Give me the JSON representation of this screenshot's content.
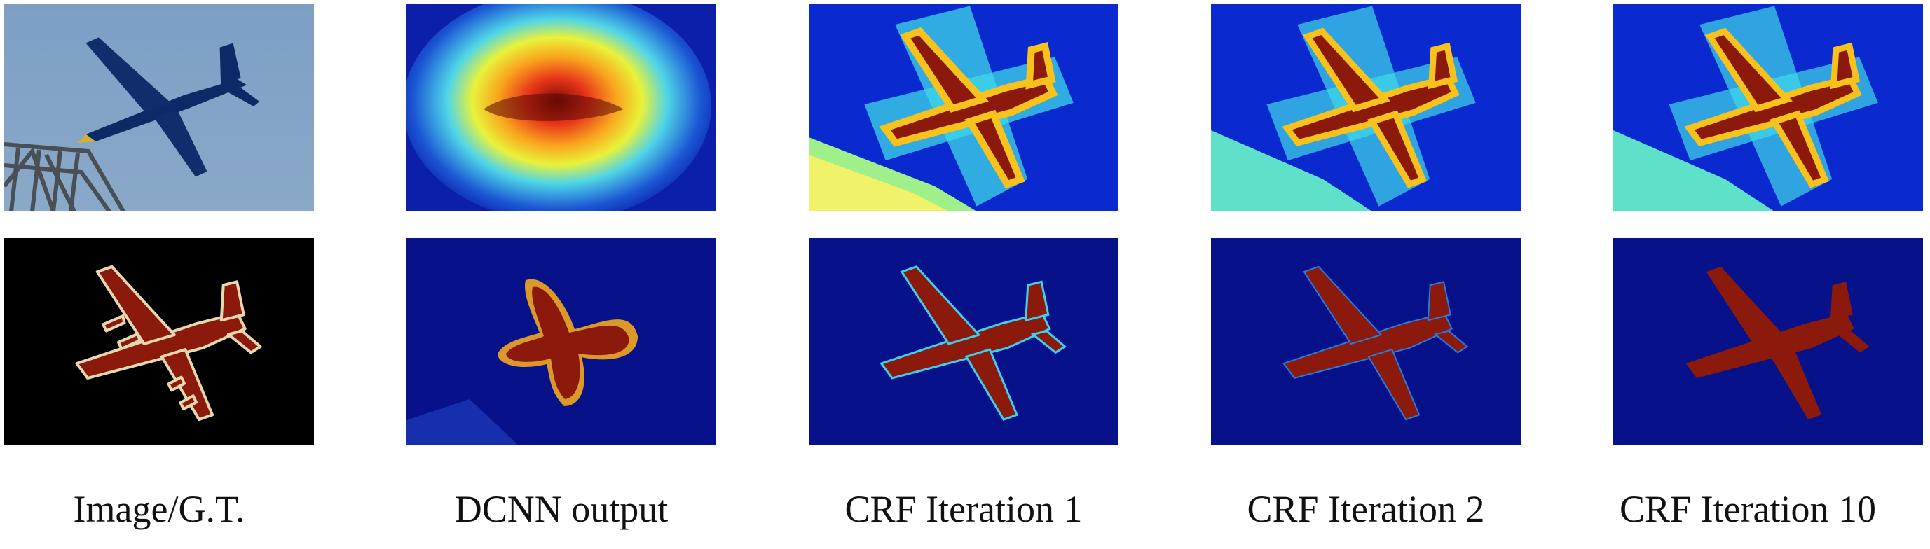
{
  "figure": {
    "captions": [
      "Image/G.T.",
      "DCNN output",
      "CRF Iteration 1",
      "CRF Iteration 2",
      "CRF Iteration 10"
    ],
    "colors": {
      "sky": "#7fa3c8",
      "gt_background": "#000000",
      "airplane_mask": "#8b1a0c",
      "mask_border": "#e6d7b0",
      "map_low": "#07128a",
      "map_high": "#7f1208"
    }
  }
}
